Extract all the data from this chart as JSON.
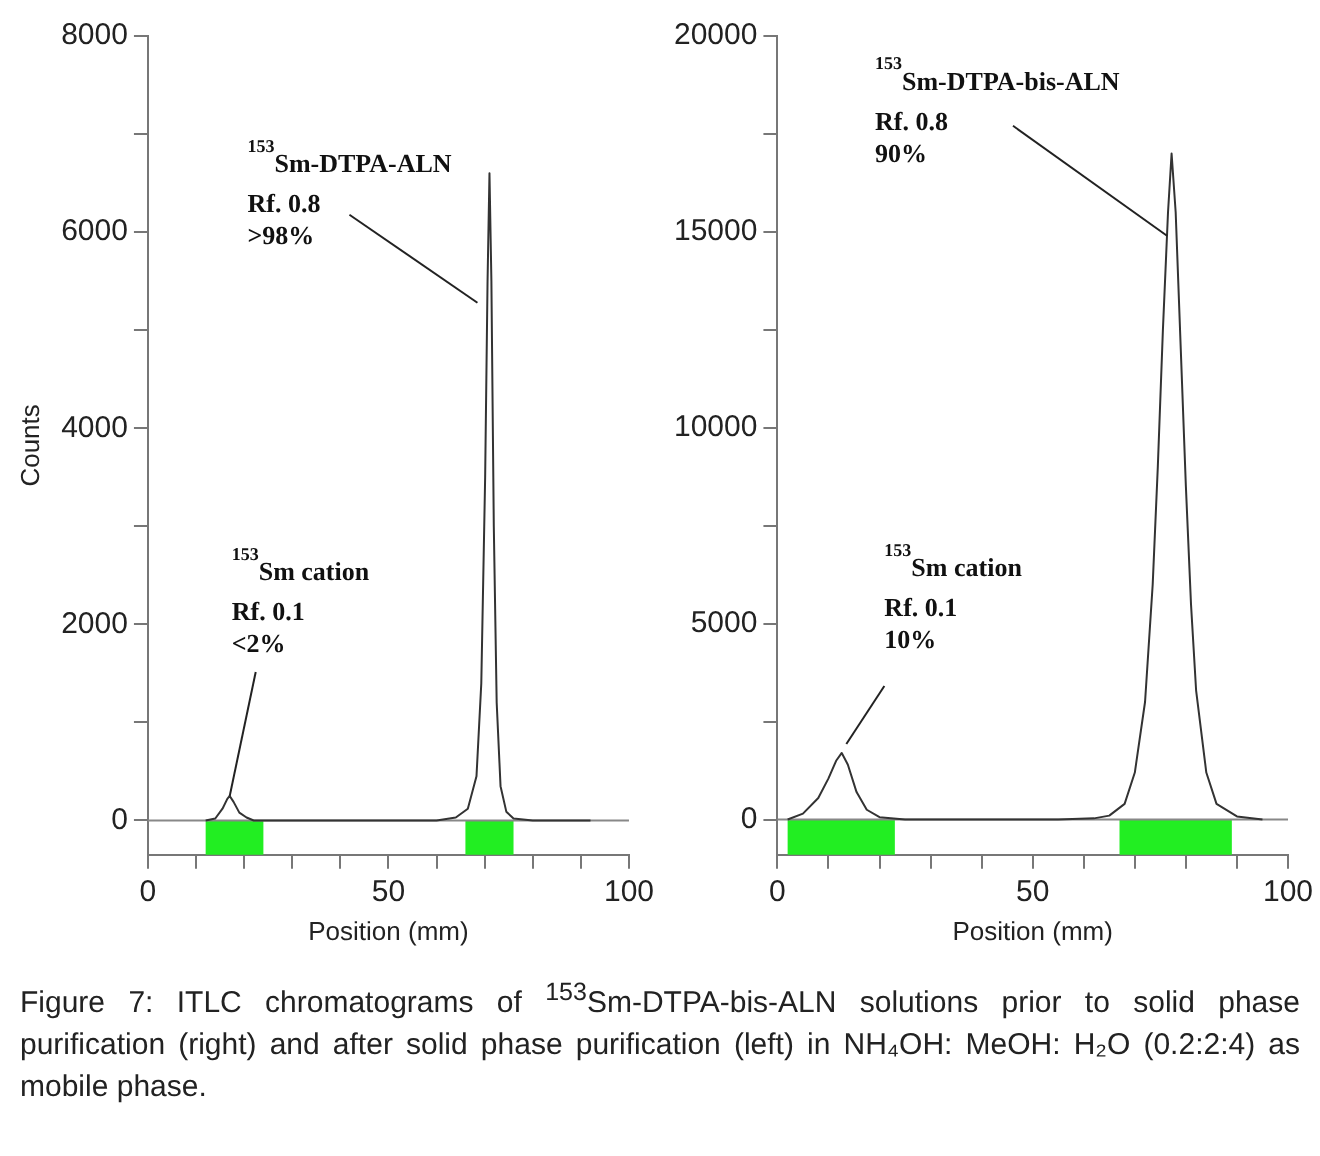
{
  "chart_data": [
    {
      "type": "line",
      "xlabel": "Position (mm)",
      "ylabel": "Counts",
      "xlim": [
        0,
        100
      ],
      "ylim": [
        -350,
        8000
      ],
      "xticks": [
        0,
        {
          "value": 10,
          "label": null
        },
        {
          "value": 20,
          "label": null
        },
        {
          "value": 30,
          "label": null
        },
        {
          "value": 40,
          "label": null
        },
        50,
        {
          "value": 60,
          "label": null
        },
        {
          "value": 70,
          "label": null
        },
        {
          "value": 80,
          "label": null
        },
        {
          "value": 90,
          "label": null
        },
        100
      ],
      "yticks": [
        0,
        {
          "value": 1000,
          "label": null
        },
        2000,
        {
          "value": 3000,
          "label": null
        },
        4000,
        {
          "value": 5000,
          "label": null
        },
        6000,
        {
          "value": 7000,
          "label": null
        },
        8000
      ],
      "series": [
        {
          "color": "#333333",
          "x": [
            12,
            14,
            15.5,
            16.5,
            17,
            17.8,
            19,
            20.5,
            22,
            30,
            45,
            60,
            64,
            66.5,
            68.3,
            69.3,
            70.1,
            70.6,
            71,
            71.4,
            71.9,
            72.5,
            73.3,
            74.5,
            76,
            80,
            92
          ],
          "values": [
            0,
            20,
            120,
            220,
            250,
            190,
            80,
            30,
            0,
            0,
            0,
            0,
            30,
            120,
            450,
            1400,
            3500,
            5500,
            6600,
            5500,
            3000,
            1200,
            350,
            90,
            20,
            0,
            0
          ]
        }
      ],
      "bands": [
        {
          "axis": "x",
          "from": 12,
          "to": 24,
          "color": "#22ee22"
        },
        {
          "axis": "x",
          "from": 66,
          "to": 76,
          "color": "#22ee22"
        }
      ],
      "annotations": [
        {
          "text": "$^{153}$Sm-DTPA-ALN\nRf. 0.8\n>98%",
          "x": 68.5,
          "y": 5280
        },
        {
          "text": "$^{153}$Sm cation\nRf. 0.1\n<2%",
          "x": 17,
          "y": 250
        },
        "Figure 7: ITLC chromatograms of $^{153}$Sm-DTPA-bis-ALN solutions prior to solid phase purification (right) and after solid phase purification (left) in NH₄OH: MeOH: H₂O (0.2:2:4) as mobile phase."
      ]
    },
    {
      "type": "line",
      "xlabel": "Position (mm)",
      "xlim": [
        0,
        100
      ],
      "ylim": [
        -900,
        20000
      ],
      "xticks": [
        0,
        {
          "value": 10,
          "label": null
        },
        {
          "value": 20,
          "label": null
        },
        {
          "value": 30,
          "label": null
        },
        {
          "value": 40,
          "label": null
        },
        50,
        {
          "value": 60,
          "label": null
        },
        {
          "value": 70,
          "label": null
        },
        {
          "value": 80,
          "label": null
        },
        {
          "value": 90,
          "label": null
        },
        100
      ],
      "yticks": [
        0,
        {
          "value": 2500,
          "label": null
        },
        5000,
        {
          "value": 7500,
          "label": null
        },
        10000,
        {
          "value": 12500,
          "label": null
        },
        15000,
        {
          "value": 17500,
          "label": null
        },
        20000
      ],
      "series": [
        {
          "color": "#333333",
          "x": [
            2,
            5,
            8,
            10,
            11.5,
            12.6,
            13.8,
            15.5,
            17.5,
            20,
            25,
            35,
            55,
            62,
            65,
            68,
            70,
            72,
            73.5,
            74.5,
            75.5,
            76.5,
            77.2,
            78,
            79,
            80,
            81,
            82,
            84,
            86,
            90,
            95
          ],
          "values": [
            0,
            150,
            550,
            1050,
            1500,
            1700,
            1400,
            700,
            250,
            60,
            0,
            0,
            0,
            30,
            100,
            400,
            1200,
            3000,
            6000,
            9000,
            12500,
            15500,
            17000,
            15500,
            12000,
            8500,
            5500,
            3300,
            1200,
            400,
            80,
            0
          ]
        }
      ],
      "bands": [
        {
          "axis": "x",
          "from": 2,
          "to": 23,
          "color": "#22ee22"
        },
        {
          "axis": "x",
          "from": 67,
          "to": 89,
          "color": "#22ee22"
        }
      ],
      "annotations": [
        {
          "text": "$^{153}$Sm-DTPA-bis-ALN\nRf. 0.8\n90%",
          "x": 76.3,
          "y": 14900
        },
        {
          "text": "$^{153}$Sm cation\nRf. 0.1\n10%",
          "x": 13.5,
          "y": 1930
        }
      ]
    }
  ]
}
